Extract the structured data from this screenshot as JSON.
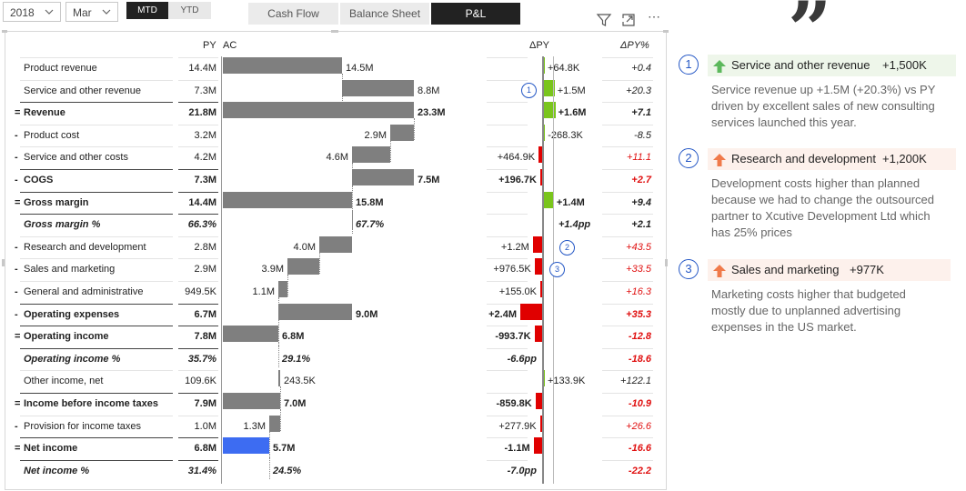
{
  "filters": {
    "year": "2018",
    "month": "Mar",
    "mtd": "MTD",
    "ytd": "YTD"
  },
  "tabs": [
    "Cash Flow",
    "Balance Sheet",
    "P&L"
  ],
  "active_tab": "P&L",
  "toolbar_icons": [
    "filter-icon",
    "focus-mode-icon",
    "more-options-icon"
  ],
  "columns": {
    "py": "PY",
    "ac": "AC",
    "dpy": "ΔPY",
    "dpy_pct": "ΔPY%"
  },
  "colors": {
    "ac_bar": "#7f7f7f",
    "highlight_bar": "#3d6cf2",
    "positive": "#7ac51c",
    "negative": "#e00000",
    "accent_blue": "#2457c5"
  },
  "rows": [
    {
      "prefix": "",
      "label": "Product revenue",
      "py": "14.4M",
      "ac": "14.5M",
      "dpy": "+64.8K",
      "dpy_pct": "+0.4",
      "variance": 64.8,
      "pct_negative": false
    },
    {
      "prefix": "",
      "label": "Service and other revenue",
      "py": "7.3M",
      "ac": "8.8M",
      "dpy": "+1.5M",
      "dpy_pct": "+20.3",
      "variance": 1500,
      "pct_negative": false
    },
    {
      "prefix": "=",
      "label": "Revenue",
      "py": "21.8M",
      "ac": "23.3M",
      "dpy": "+1.6M",
      "dpy_pct": "+7.1",
      "variance": 1600,
      "pct_negative": false
    },
    {
      "prefix": "-",
      "label": "Product cost",
      "py": "3.2M",
      "ac": "2.9M",
      "dpy": "-268.3K",
      "dpy_pct": "-8.5",
      "variance": 268.3,
      "pct_negative": false
    },
    {
      "prefix": "-",
      "label": "Service and other costs",
      "py": "4.2M",
      "ac": "4.6M",
      "dpy": "+464.9K",
      "dpy_pct": "+11.1",
      "variance": -464.9,
      "pct_negative": true
    },
    {
      "prefix": "-",
      "label": "COGS",
      "py": "7.3M",
      "ac": "7.5M",
      "dpy": "+196.7K",
      "dpy_pct": "+2.7",
      "variance": -196.7,
      "pct_negative": true
    },
    {
      "prefix": "=",
      "label": "Gross margin",
      "py": "14.4M",
      "ac": "15.8M",
      "dpy": "+1.4M",
      "dpy_pct": "+9.4",
      "variance": 1400,
      "pct_negative": false
    },
    {
      "prefix": "",
      "label": "Gross margin %",
      "py": "66.3%",
      "ac": "67.7%",
      "dpy": "+1.4pp",
      "dpy_pct": "+2.1",
      "variance": 0,
      "pct_negative": false
    },
    {
      "prefix": "-",
      "label": "Research and development",
      "py": "2.8M",
      "ac": "4.0M",
      "dpy": "+1.2M",
      "dpy_pct": "+43.5",
      "variance": -1200,
      "pct_negative": true
    },
    {
      "prefix": "-",
      "label": "Sales and marketing",
      "py": "2.9M",
      "ac": "3.9M",
      "dpy": "+976.5K",
      "dpy_pct": "+33.5",
      "variance": -976.5,
      "pct_negative": true
    },
    {
      "prefix": "-",
      "label": "General and administrative",
      "py": "949.5K",
      "ac": "1.1M",
      "dpy": "+155.0K",
      "dpy_pct": "+16.3",
      "variance": -155,
      "pct_negative": true
    },
    {
      "prefix": "-",
      "label": "Operating expenses",
      "py": "6.7M",
      "ac": "9.0M",
      "dpy": "+2.4M",
      "dpy_pct": "+35.3",
      "variance": -2400,
      "pct_negative": true
    },
    {
      "prefix": "=",
      "label": "Operating income",
      "py": "7.8M",
      "ac": "6.8M",
      "dpy": "-993.7K",
      "dpy_pct": "-12.8",
      "variance": -993.7,
      "pct_negative": true
    },
    {
      "prefix": "",
      "label": "Operating income %",
      "py": "35.7%",
      "ac": "29.1%",
      "dpy": "-6.6pp",
      "dpy_pct": "-18.6",
      "variance": 0,
      "pct_negative": true
    },
    {
      "prefix": "",
      "label": "Other income, net",
      "py": "109.6K",
      "ac": "243.5K",
      "dpy": "+133.9K",
      "dpy_pct": "+122.1",
      "variance": 133.9,
      "pct_negative": false
    },
    {
      "prefix": "=",
      "label": "Income before income taxes",
      "py": "7.9M",
      "ac": "7.0M",
      "dpy": "-859.8K",
      "dpy_pct": "-10.9",
      "variance": -859.8,
      "pct_negative": true
    },
    {
      "prefix": "-",
      "label": "Provision for income taxes",
      "py": "1.0M",
      "ac": "1.3M",
      "dpy": "+277.9K",
      "dpy_pct": "+26.6",
      "variance": -277.9,
      "pct_negative": true
    },
    {
      "prefix": "=",
      "label": "Net income",
      "py": "6.8M",
      "ac": "5.7M",
      "dpy": "-1.1M",
      "dpy_pct": "-16.6",
      "variance": -1100,
      "pct_negative": true
    },
    {
      "prefix": "",
      "label": "Net income %",
      "py": "31.4%",
      "ac": "24.5%",
      "dpy": "-7.0pp",
      "dpy_pct": "-22.2",
      "variance": 0,
      "pct_negative": true
    }
  ],
  "chart_data": {
    "type": "bar",
    "title": "",
    "ac_waterfall_unit": "M",
    "categories": [
      "Product revenue",
      "Service and other revenue",
      "Revenue",
      "Product cost",
      "Service and other costs",
      "COGS",
      "Gross margin",
      "Research and development",
      "Sales and marketing",
      "General and administrative",
      "Operating expenses",
      "Operating income",
      "Other income, net",
      "Income before income taxes",
      "Provision for income taxes",
      "Net income"
    ],
    "ac_values": [
      14.5,
      8.8,
      23.3,
      2.9,
      4.6,
      7.5,
      15.8,
      4.0,
      3.9,
      1.1,
      9.0,
      6.8,
      0.2435,
      7.0,
      1.3,
      5.7
    ],
    "dpy_values_k": [
      64.8,
      1500,
      1600,
      268.3,
      -464.9,
      -196.7,
      1400,
      -1200,
      -976.5,
      -155,
      -2400,
      -993.7,
      133.9,
      -859.8,
      -277.9,
      -1100
    ]
  },
  "comment_markers": [
    "1",
    "2",
    "3"
  ],
  "comments": {
    "quote_glyph": "”",
    "items": [
      {
        "num": "1",
        "direction": "up",
        "arrow_color": "#5cb85c",
        "title": "Service and other revenue",
        "value": "+1,500K",
        "body": "Service revenue up +1.5M (+20.3%) vs PY driven by excellent sales of new consulting services launched this year."
      },
      {
        "num": "2",
        "direction": "up",
        "arrow_color": "#f07a4a",
        "title": "Research and development",
        "value": "+1,200K",
        "body": "Development costs higher than planned because we had to change the outsourced partner to Xcutive Development Ltd which has 25% prices"
      },
      {
        "num": "3",
        "direction": "up",
        "arrow_color": "#f07a4a",
        "title": "Sales and marketing",
        "value": "+977K",
        "body": "Marketing costs higher that budgeted mostly due to unplanned advertising expenses in the US market."
      }
    ]
  }
}
